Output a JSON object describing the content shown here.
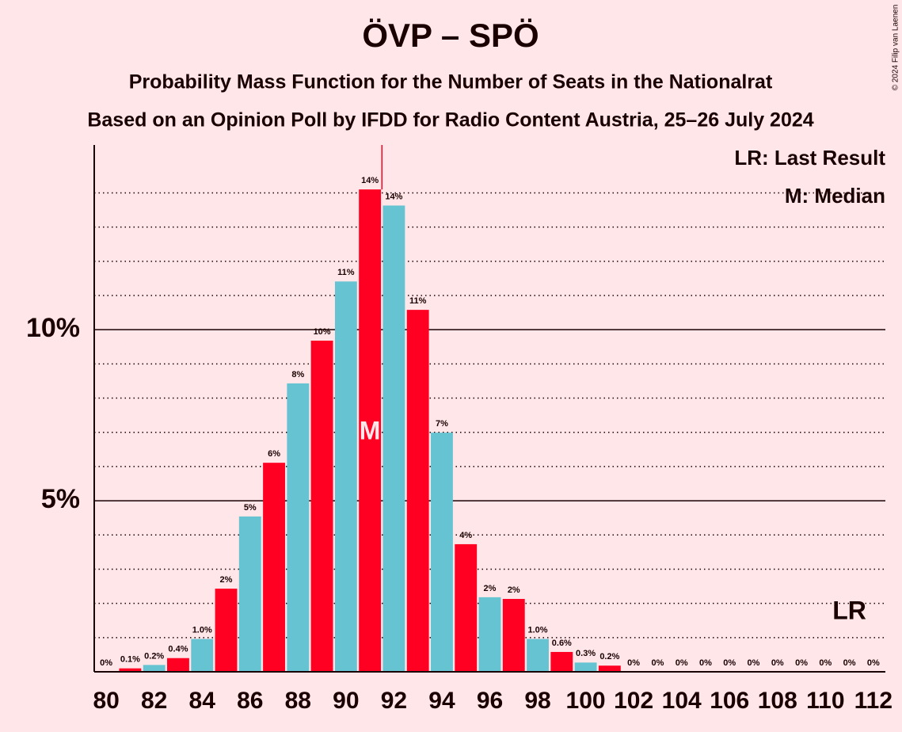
{
  "chart_data": {
    "type": "bar",
    "title": "ÖVP – SPÖ",
    "subtitle": "Probability Mass Function for the Number of Seats in the Nationalrat",
    "subtitle2": "Based on an Opinion Poll by IFDD for Radio Content Austria, 25–26 July 2024",
    "copyright": "© 2024 Filip van Laenen",
    "legend_lr": "LR: Last Result",
    "legend_median": "M: Median",
    "median_label": "M",
    "lr_label": "LR",
    "median": 91,
    "last_result": 111,
    "majority_line": 91.5,
    "categories": [
      80,
      null,
      82,
      null,
      84,
      null,
      86,
      null,
      88,
      null,
      90,
      null,
      92,
      null,
      94,
      null,
      96,
      null,
      98,
      null,
      100,
      null,
      102,
      null,
      104,
      null,
      106,
      null,
      108,
      null,
      110,
      null,
      112
    ],
    "values": [
      0,
      0.1,
      0.2,
      0.4,
      0.96,
      2.43,
      4.54,
      6.11,
      8.43,
      9.68,
      11.41,
      14.1,
      13.63,
      10.58,
      6.99,
      3.73,
      2.18,
      2.13,
      0.96,
      0.58,
      0.27,
      0.18,
      0,
      0,
      0,
      0,
      0,
      0,
      0,
      0,
      0,
      0,
      0
    ],
    "value_labels": [
      "0%",
      "0.1%",
      "0.2%",
      "0.4%",
      "1.0%",
      "2%",
      "5%",
      "6%",
      "8%",
      "10%",
      "11%",
      "14%",
      "14%",
      "11%",
      "7%",
      "4%",
      "2%",
      "2%",
      "1.0%",
      "0.6%",
      "0.3%",
      "0.2%",
      "0%",
      "0%",
      "0%",
      "0%",
      "0%",
      "0%",
      "0%",
      "0%",
      "0%",
      "0%",
      "0%"
    ],
    "color_cycle": [
      "#66c3d2",
      "#ff0022"
    ],
    "ylim": [
      0,
      15.4
    ],
    "yticks": [
      {
        "value": 5,
        "label": "5%"
      },
      {
        "value": 10,
        "label": "10%"
      }
    ],
    "minor_yticks": [
      1,
      2,
      3,
      4,
      6,
      7,
      8,
      9,
      11,
      12,
      13,
      14
    ],
    "grid": true
  }
}
